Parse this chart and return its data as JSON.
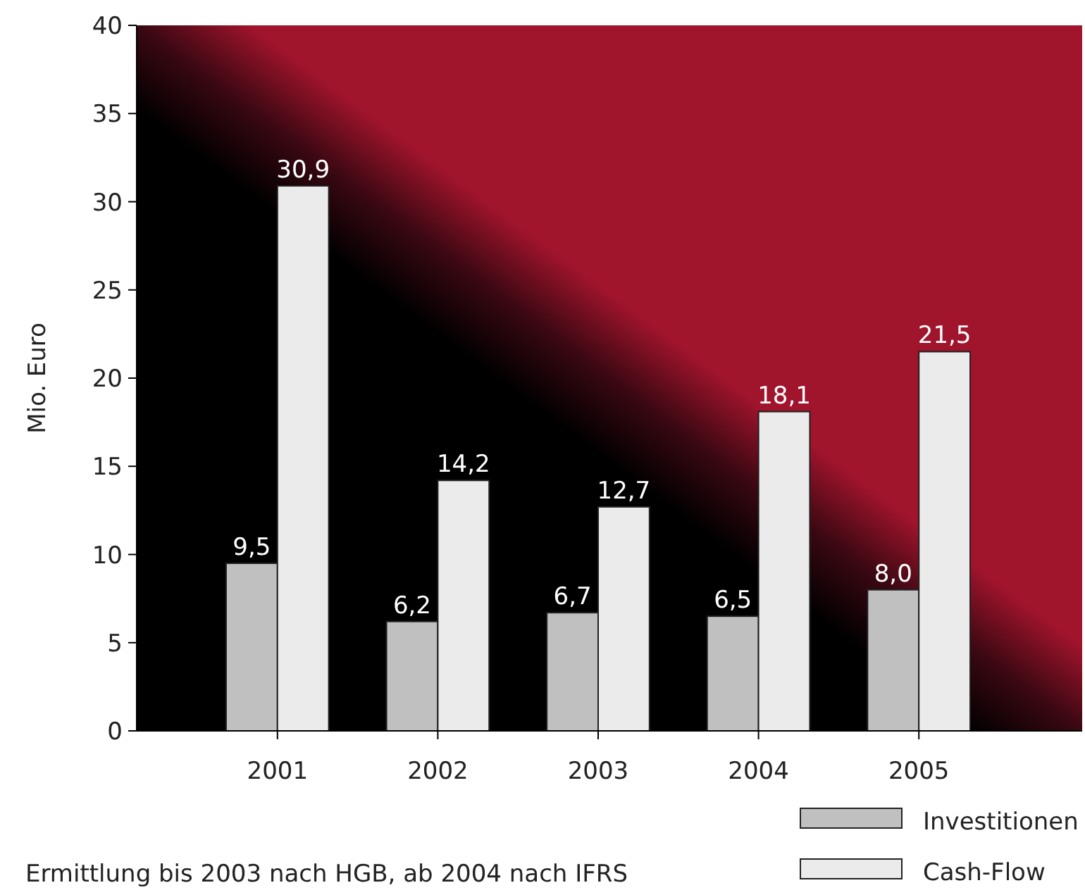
{
  "chart_data": {
    "type": "bar",
    "ylabel": "Mio. Euro",
    "categories": [
      "2001",
      "2002",
      "2003",
      "2004",
      "2005"
    ],
    "series": [
      {
        "name": "Investitionen",
        "color": "#c0c0c0",
        "values": [
          9.5,
          6.2,
          6.7,
          6.5,
          8.0
        ],
        "value_labels": [
          "9,5",
          "6,2",
          "6,7",
          "6,5",
          "8,0"
        ]
      },
      {
        "name": "Cash-Flow",
        "color": "#ebebeb",
        "values": [
          30.9,
          14.2,
          12.7,
          18.1,
          21.5
        ],
        "value_labels": [
          "30,9",
          "14,2",
          "12,7",
          "18,1",
          "21,5"
        ]
      }
    ],
    "ylim": [
      0,
      40
    ],
    "yticks": [
      0,
      5,
      10,
      15,
      20,
      25,
      30,
      35,
      40
    ],
    "grid": false,
    "legend": "bottom right",
    "annotations": [
      "Ermittlung bis 2003 nach HGB, ab 2004 nach IFRS"
    ]
  }
}
